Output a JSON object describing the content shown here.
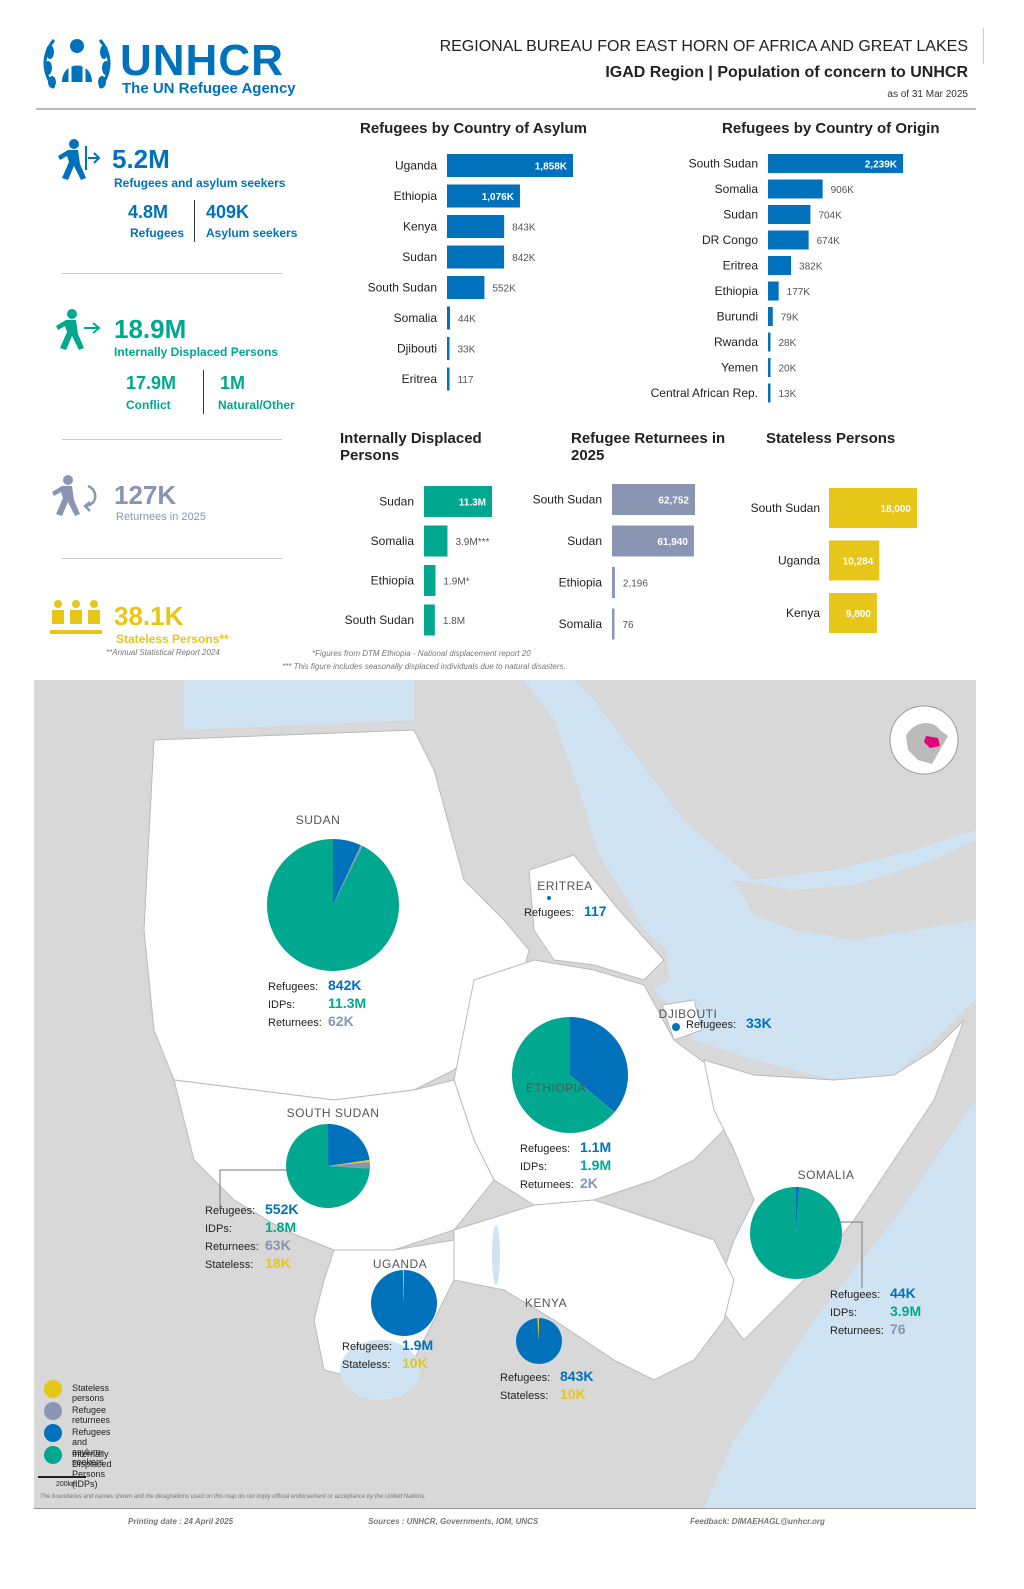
{
  "header": {
    "org": "UNHCR",
    "agency": "The UN Refugee Agency",
    "bureau": "REGIONAL BUREAU FOR EAST HORN OF AFRICA AND GREAT LAKES",
    "title": "IGAD Region | Population of concern to UNHCR",
    "date": "as of 31 Mar 2025"
  },
  "kpis": {
    "refugees_asylum": {
      "value": "5.2M",
      "label": "Refugees and asylum seekers"
    },
    "refugees": {
      "value": "4.8M",
      "label": "Refugees"
    },
    "asylum": {
      "value": "409K",
      "label": "Asylum seekers"
    },
    "idps": {
      "value": "18.9M",
      "label": "Internally Displaced Persons"
    },
    "conflict": {
      "value": "17.9M",
      "label": "Conflict"
    },
    "natural": {
      "value": "1M",
      "label": "Natural/Other"
    },
    "returnees": {
      "value": "127K",
      "label": "Returnees in 2025"
    },
    "stateless": {
      "value": "38.1K",
      "label": "Stateless Persons**"
    },
    "stateless_note": "**Annual Statistical Report 2024"
  },
  "colors": {
    "blue": "#0072bc",
    "green": "#00a88f",
    "grey": "#8a95b4",
    "yellow": "#e6c619"
  },
  "notes": {
    "n1": "*Figures from DTM Ethiopia - National displacement report 20",
    "n2": "*** This figure includes seasonally displaced individuals due to natural disasters."
  },
  "chart_data": [
    {
      "type": "bar",
      "title": "Refugees by Country of Asylum",
      "categories": [
        "Uganda",
        "Ethiopia",
        "Kenya",
        "Sudan",
        "South Sudan",
        "Somalia",
        "Djibouti",
        "Eritrea"
      ],
      "values": [
        1858000,
        1076000,
        843000,
        842000,
        552000,
        44000,
        33000,
        117
      ],
      "labels": [
        "1,858K",
        "1,076K",
        "843K",
        "842K",
        "552K",
        "44K",
        "33K",
        "117"
      ]
    },
    {
      "type": "bar",
      "title": "Refugees by Country of Origin",
      "categories": [
        "South Sudan",
        "Somalia",
        "Sudan",
        "DR Congo",
        "Eritrea",
        "Ethiopia",
        "Burundi",
        "Rwanda",
        "Yemen",
        "Central African Rep."
      ],
      "values": [
        2239000,
        906000,
        704000,
        674000,
        382000,
        177000,
        79000,
        28000,
        20000,
        13000
      ],
      "labels": [
        "2,239K",
        "906K",
        "704K",
        "674K",
        "382K",
        "177K",
        "79K",
        "28K",
        "20K",
        "13K"
      ]
    },
    {
      "type": "bar",
      "title": "Internally Displaced Persons",
      "categories": [
        "Sudan",
        "Somalia",
        "Ethiopia",
        "South Sudan"
      ],
      "values": [
        11300000,
        3900000,
        1900000,
        1800000
      ],
      "labels": [
        "11.3M",
        "3.9M***",
        "1.9M*",
        "1.8M"
      ]
    },
    {
      "type": "bar",
      "title": "Refugee Returnees in 2025",
      "categories": [
        "South Sudan",
        "Sudan",
        "Ethiopia",
        "Somalia"
      ],
      "values": [
        62752,
        61940,
        2196,
        76
      ],
      "labels": [
        "62,752",
        "61,940",
        "2,196",
        "76"
      ]
    },
    {
      "type": "bar",
      "title": "Stateless Persons",
      "categories": [
        "South Sudan",
        "Uganda",
        "Kenya"
      ],
      "values": [
        18000,
        10284,
        9800
      ],
      "labels": [
        "18,000",
        "10,284",
        "9,800"
      ]
    },
    {
      "type": "pie",
      "title": "",
      "regions": [
        {
          "name": "SUDAN",
          "refugees": 842000,
          "idps": 11300000,
          "returnees": 61940,
          "stateless": 0,
          "lines": [
            [
              "Refugees:",
              "842K",
              "blue"
            ],
            [
              "IDPs:",
              "11.3M",
              "green"
            ],
            [
              "Returnees:",
              "62K",
              "grey"
            ]
          ]
        },
        {
          "name": "ERITREA",
          "refugees": 117,
          "idps": 0,
          "returnees": 0,
          "stateless": 0,
          "lines": [
            [
              "Refugees:",
              "117",
              "blue"
            ]
          ]
        },
        {
          "name": "DJIBOUTI",
          "refugees": 33000,
          "idps": 0,
          "returnees": 0,
          "stateless": 0,
          "lines": [
            [
              "Refugees:",
              "33K",
              "blue"
            ]
          ]
        },
        {
          "name": "ETHIOPIA",
          "refugees": 1076000,
          "idps": 1900000,
          "returnees": 2196,
          "stateless": 0,
          "lines": [
            [
              "Refugees:",
              "1.1M",
              "blue"
            ],
            [
              "IDPs:",
              "1.9M",
              "green"
            ],
            [
              "Returnees:",
              "2K",
              "grey"
            ]
          ]
        },
        {
          "name": "SOUTH SUDAN",
          "refugees": 552000,
          "idps": 1800000,
          "returnees": 62752,
          "stateless": 18000,
          "lines": [
            [
              "Refugees:",
              "552K",
              "blue"
            ],
            [
              "IDPs:",
              "1.8M",
              "green"
            ],
            [
              "Returnees:",
              "63K",
              "grey"
            ],
            [
              "Stateless:",
              "18K",
              "yellow"
            ]
          ]
        },
        {
          "name": "SOMALIA",
          "refugees": 44000,
          "idps": 3900000,
          "returnees": 76,
          "stateless": 0,
          "lines": [
            [
              "Refugees:",
              "44K",
              "blue"
            ],
            [
              "IDPs:",
              "3.9M",
              "green"
            ],
            [
              "Returnees:",
              "76",
              "grey"
            ]
          ]
        },
        {
          "name": "UGANDA",
          "refugees": 1858000,
          "idps": 0,
          "returnees": 0,
          "stateless": 10284,
          "lines": [
            [
              "Refugees:",
              "1.9M",
              "blue"
            ],
            [
              "Stateless:",
              "10K",
              "yellow"
            ]
          ]
        },
        {
          "name": "KENYA",
          "refugees": 843000,
          "idps": 0,
          "returnees": 0,
          "stateless": 9800,
          "lines": [
            [
              "Refugees:",
              "843K",
              "blue"
            ],
            [
              "Stateless:",
              "10K",
              "yellow"
            ]
          ]
        }
      ]
    }
  ],
  "legend": [
    {
      "label": "Stateless persons",
      "color": "#e6c619"
    },
    {
      "label": "Refugee returnees",
      "color": "#8a95b4"
    },
    {
      "label": "Refugees and asylum-seekers",
      "color": "#0072bc"
    },
    {
      "label": "Internally Displaced Persons (IDPs)",
      "color": "#00a88f"
    }
  ],
  "scale_label": "200km",
  "disclaimer": "The boundaries and names shown and the designations used on this map do not imply official endorsement or acceptance by the United Nations.",
  "footer": {
    "printing": "Printing date : 24 April 2025",
    "sources": "Sources : UNHCR, Governments, IOM, UNCS",
    "feedback": "Feedback: DIMAEHAGL@unhcr.org"
  }
}
